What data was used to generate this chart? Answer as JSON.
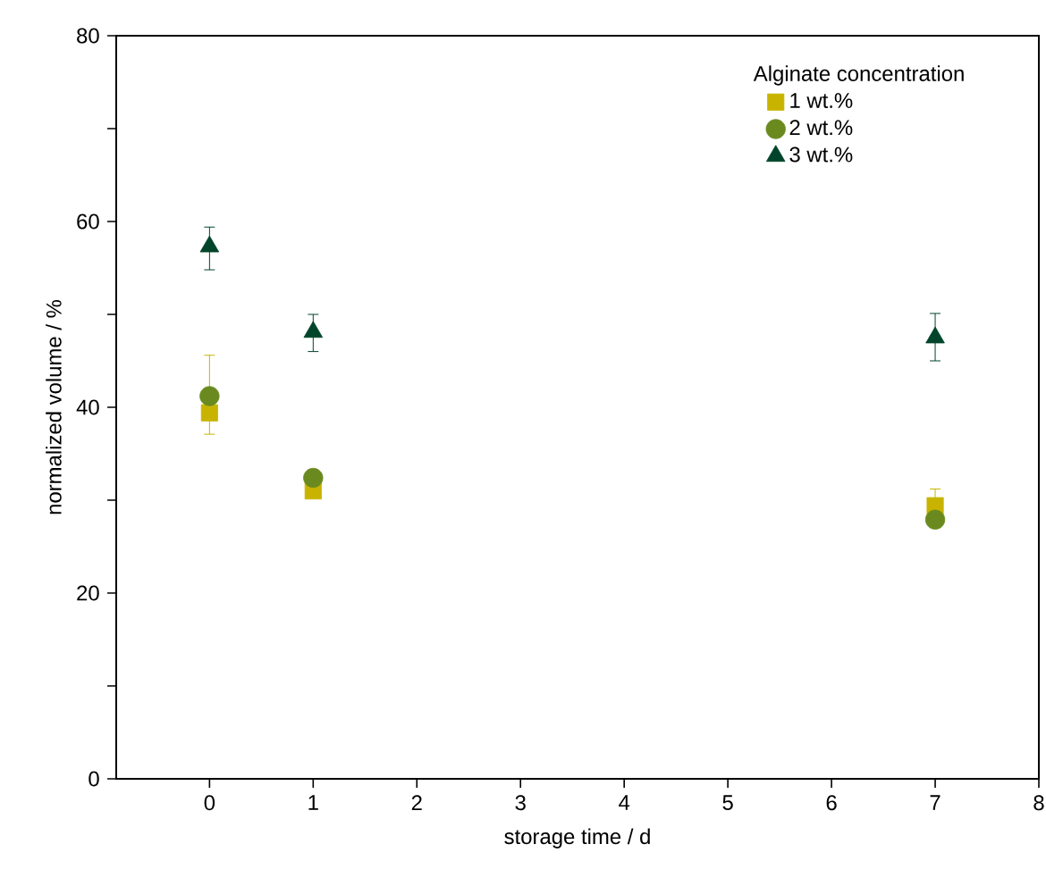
{
  "chart_data": {
    "type": "scatter",
    "xlabel": "storage time / d",
    "ylabel": "normalized volume / %",
    "legend_title": "Alginate concentration",
    "legend": "top right",
    "grid": false,
    "xlim": [
      -0.9,
      8
    ],
    "xticks": [
      0,
      1,
      2,
      3,
      4,
      5,
      6,
      7,
      8
    ],
    "ylim": [
      0,
      80
    ],
    "yticks": [
      0,
      {
        "value": 10,
        "label": null
      },
      20,
      {
        "value": 30,
        "label": null
      },
      40,
      {
        "value": 50,
        "label": null
      },
      60,
      {
        "value": 70,
        "label": null
      },
      80
    ],
    "series": [
      {
        "name": "1 wt.%",
        "color": "#c8b400",
        "marker": "square",
        "x": [
          0,
          1,
          7
        ],
        "values": [
          39.4,
          31.0,
          29.4
        ],
        "errors": [
          [
            37.1,
            45.6
          ],
          null,
          1.8
        ]
      },
      {
        "name": "2 wt.%",
        "color": "#6a8a1f",
        "marker": "circle",
        "x": [
          0,
          1,
          7
        ],
        "values": [
          41.2,
          32.4,
          27.9
        ]
      },
      {
        "name": "3 wt.%",
        "color": "#00442a",
        "marker": "triangle",
        "x": [
          0,
          1,
          7
        ],
        "values": [
          57.3,
          48.1,
          47.5
        ],
        "errors": [
          [
            54.8,
            59.4
          ],
          [
            46.0,
            50.0
          ],
          [
            45.0,
            50.1
          ]
        ]
      }
    ]
  }
}
